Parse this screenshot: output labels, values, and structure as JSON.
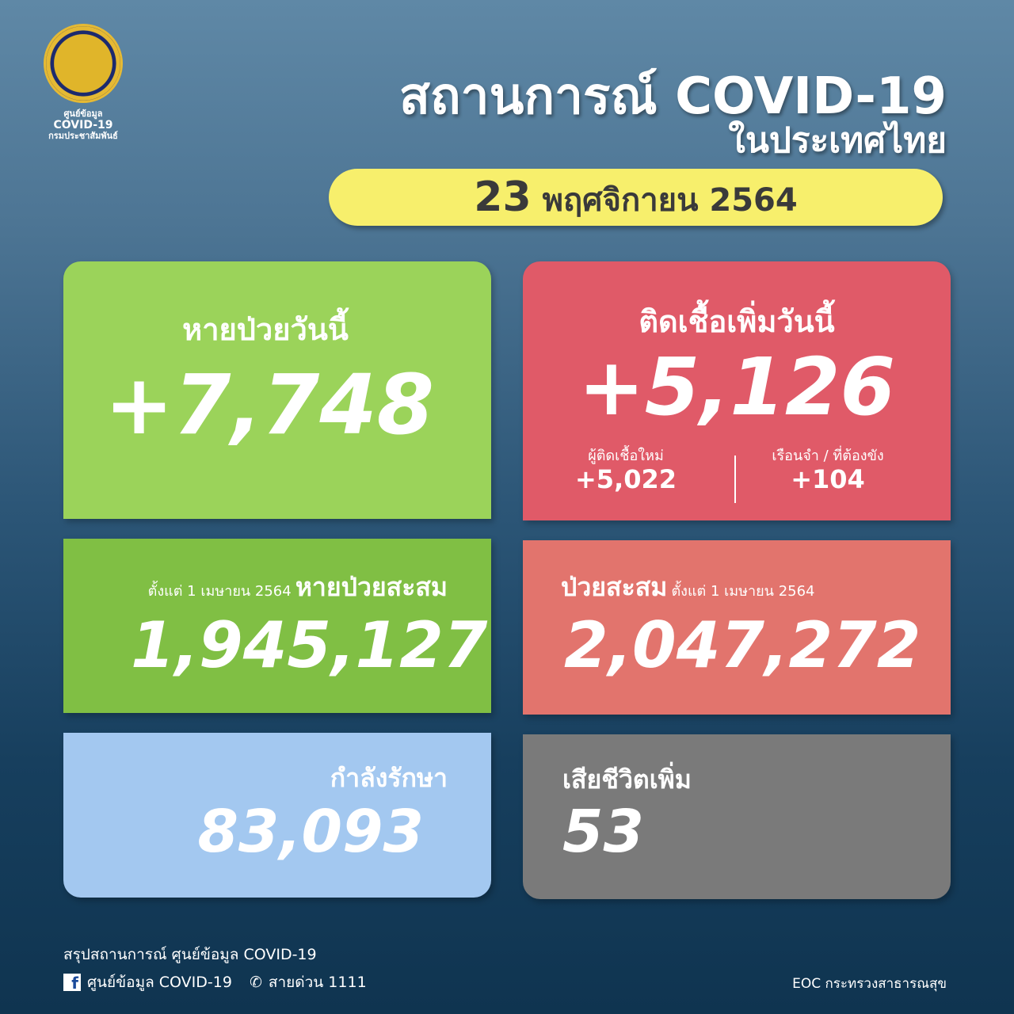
{
  "logo": {
    "line1": "ศูนย์ข้อมูล",
    "line2": "COVID-19",
    "line3": "กรมประชาสัมพันธ์"
  },
  "header": {
    "title": "สถานการณ์ COVID-19",
    "subtitle": "ในประเทศไทย",
    "date_day": "23",
    "date_rest": "พฤศจิกายน 2564"
  },
  "recovered_today": {
    "label": "หายป่วยวันนี้",
    "value": "+7,748",
    "color": "#9bd35a"
  },
  "infected_today": {
    "label": "ติดเชื้อเพิ่มวันนี้",
    "value": "+5,126",
    "color": "#e05a68",
    "new_label": "ผู้ติดเชื้อใหม่",
    "new_value": "+5,022",
    "prison_label": "เรือนจำ / ที่ต้องขัง",
    "prison_value": "+104"
  },
  "recovered_total": {
    "since": "ตั้งแต่ 1 เมษายน 2564",
    "label": "หายป่วยสะสม",
    "value": "1,945,127",
    "color": "#80bf44"
  },
  "cases_total": {
    "label": "ป่วยสะสม",
    "since": "ตั้งแต่ 1 เมษายน 2564",
    "value": "2,047,272",
    "color": "#e2746d"
  },
  "treating": {
    "label": "กำลังรักษา",
    "value": "83,093",
    "color": "#a3c8f0"
  },
  "deaths": {
    "label": "เสียชีวิตเพิ่ม",
    "value": "53",
    "color": "#7a7a7a"
  },
  "footer": {
    "summary": "สรุปสถานการณ์ ศูนย์ข้อมูล COVID-19",
    "facebook": "ศูนย์ข้อมูล COVID-19",
    "hotline": "สายด่วน 1111",
    "source": "EOC กระทรวงสาธารณสุข",
    "facebook_icon": "facebook-icon",
    "phone_icon": "phone-icon"
  }
}
